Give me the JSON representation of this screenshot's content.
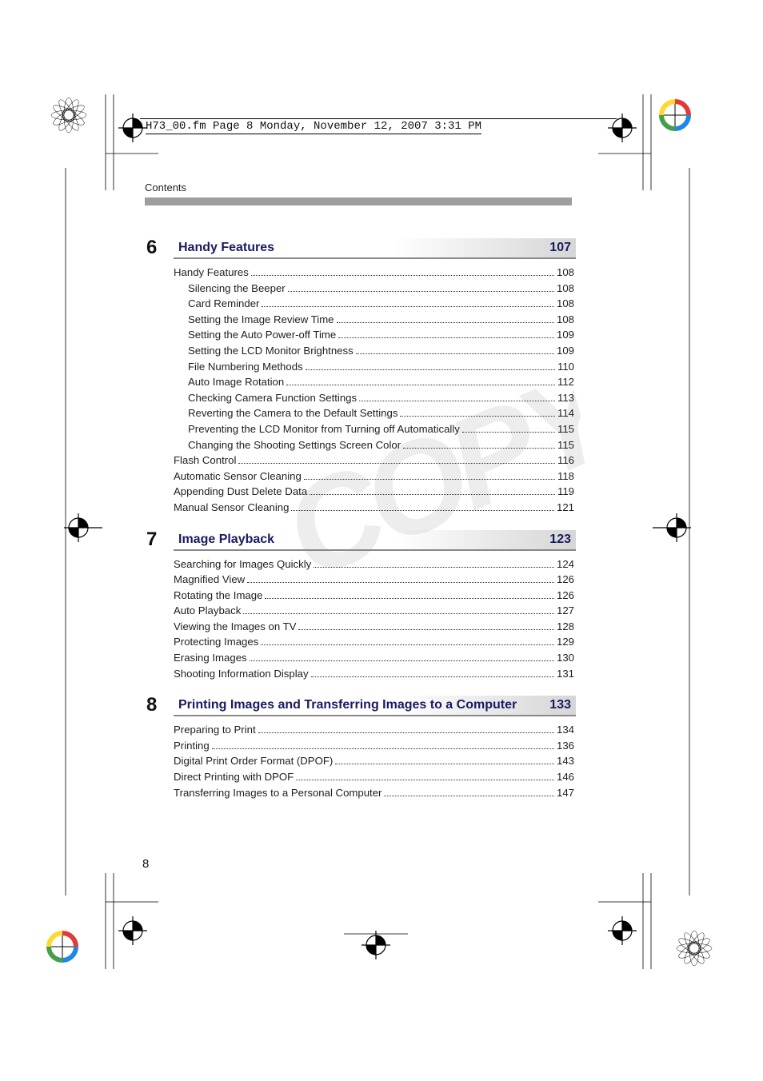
{
  "page_header": "H73_00.fm  Page 8  Monday, November 12, 2007  3:31 PM",
  "running_head": "Contents",
  "page_number": "8",
  "colors": {
    "heading_text": "#1a1a60",
    "body_text": "#1e1e1e",
    "rule_gray": "#9e9e9e",
    "underline_gray": "#888888"
  },
  "sections": [
    {
      "number": "6",
      "title": "Handy Features",
      "page": "107",
      "entries": [
        {
          "label": "Handy Features",
          "page": "108",
          "indent": false
        },
        {
          "label": "Silencing the Beeper",
          "page": "108",
          "indent": true
        },
        {
          "label": "Card Reminder",
          "page": "108",
          "indent": true
        },
        {
          "label": "Setting the Image Review Time",
          "page": "108",
          "indent": true
        },
        {
          "label": "Setting the Auto Power-off Time",
          "page": "109",
          "indent": true
        },
        {
          "label": "Setting the LCD Monitor Brightness",
          "page": "109",
          "indent": true
        },
        {
          "label": "File Numbering Methods",
          "page": "110",
          "indent": true
        },
        {
          "label": "Auto Image Rotation",
          "page": "112",
          "indent": true
        },
        {
          "label": "Checking Camera Function Settings",
          "page": "113",
          "indent": true
        },
        {
          "label": "Reverting the Camera to the Default Settings",
          "page": "114",
          "indent": true
        },
        {
          "label": "Preventing the LCD Monitor from Turning off Automatically",
          "page": "115",
          "indent": true
        },
        {
          "label": "Changing the Shooting Settings Screen Color",
          "page": "115",
          "indent": true
        },
        {
          "label": "Flash Control",
          "page": "116",
          "indent": false
        },
        {
          "label": "Automatic Sensor Cleaning",
          "page": "118",
          "indent": false
        },
        {
          "label": "Appending Dust Delete Data",
          "page": "119",
          "indent": false
        },
        {
          "label": "Manual Sensor Cleaning",
          "page": "121",
          "indent": false
        }
      ]
    },
    {
      "number": "7",
      "title": "Image Playback",
      "page": "123",
      "entries": [
        {
          "label": "Searching for Images Quickly",
          "page": "124",
          "indent": false
        },
        {
          "label": "Magnified View",
          "page": "126",
          "indent": false
        },
        {
          "label": "Rotating the Image",
          "page": "126",
          "indent": false
        },
        {
          "label": "Auto Playback",
          "page": "127",
          "indent": false
        },
        {
          "label": "Viewing the Images on TV",
          "page": "128",
          "indent": false
        },
        {
          "label": "Protecting Images",
          "page": "129",
          "indent": false
        },
        {
          "label": "Erasing Images",
          "page": "130",
          "indent": false
        },
        {
          "label": "Shooting Information Display",
          "page": "131",
          "indent": false
        }
      ]
    },
    {
      "number": "8",
      "title": "Printing Images and Transferring Images to a Computer",
      "page": "133",
      "entries": [
        {
          "label": "Preparing to Print",
          "page": "134",
          "indent": false
        },
        {
          "label": "Printing",
          "page": "136",
          "indent": false
        },
        {
          "label": "Digital Print Order Format (DPOF)",
          "page": "143",
          "indent": false
        },
        {
          "label": "Direct Printing with DPOF",
          "page": "146",
          "indent": false
        },
        {
          "label": "Transferring Images to a Personal Computer",
          "page": "147",
          "indent": false
        }
      ]
    }
  ]
}
